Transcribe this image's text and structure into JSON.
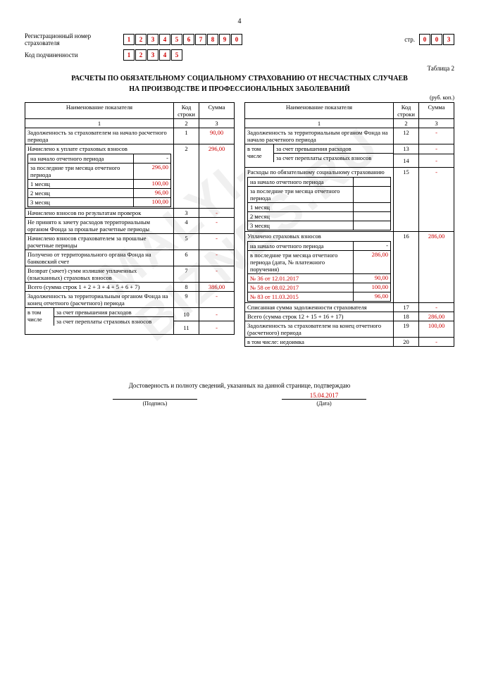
{
  "page_number": "4",
  "header": {
    "reg_label": "Регистрационный номер страхователя",
    "reg_digits": [
      "1",
      "2",
      "3",
      "4",
      "5",
      "6",
      "7",
      "8",
      "9",
      "0"
    ],
    "page_label": "стр.",
    "page_digits": [
      "0",
      "0",
      "3"
    ],
    "sub_label": "Код подчиненности",
    "sub_digits": [
      "1",
      "2",
      "3",
      "4",
      "5"
    ]
  },
  "table_no": "Таблица 2",
  "title1": "РАСЧЕТЫ ПО ОБЯЗАТЕЛЬНОМУ СОЦИАЛЬНОМУ СТРАХОВАНИЮ ОТ НЕСЧАСТНЫХ СЛУЧАЕВ",
  "title2": "НА ПРОИЗВОДСТВЕ И ПРОФЕССИОНАЛЬНЫХ ЗАБОЛЕВАНИЙ",
  "unit_label": "(руб. коп.)",
  "columns": {
    "name": "Наименование показателя",
    "code": "Код строки",
    "sum": "Сумма",
    "h1": "1",
    "h2": "2",
    "h3": "3"
  },
  "left": {
    "r1": {
      "n": "Задолженность за страхователем на начало расчетного периода",
      "c": "1",
      "s": "90,00"
    },
    "r2": {
      "n": "Начислено к уплате страховых взносов",
      "c": "2",
      "s": "296,00"
    },
    "r2a": {
      "n": "на начало отчетного периода",
      "s": "-"
    },
    "r2b": {
      "n": "за последние три месяца отчетного периода",
      "s": "296,00"
    },
    "m1": {
      "n": "1 месяц",
      "s": "100,00"
    },
    "m2": {
      "n": "2 месяц",
      "s": "96,00"
    },
    "m3": {
      "n": "3 месяц",
      "s": "100,00"
    },
    "r3": {
      "n": "Начислено взносов по результатам проверок",
      "c": "3",
      "s": "-"
    },
    "r4": {
      "n": "Не принято к зачету расходов территориальным органом Фонда за прошлые расчетные периоды",
      "c": "4",
      "s": "-"
    },
    "r5": {
      "n": "Начислено взносов страхователем за прошлые расчетные периоды",
      "c": "5",
      "s": "-"
    },
    "r6": {
      "n": "Получено от территориального органа Фонда на банковский счет",
      "c": "6",
      "s": "-"
    },
    "r7": {
      "n": "Возврат (зачет) сумм излишне уплаченных (взысканных) страховых взносов",
      "c": "7",
      "s": "-"
    },
    "r8": {
      "n": "Всего (сумма строк 1 + 2 + 3 + 4 + 5 + 6 + 7)",
      "c": "8",
      "s": "386,00"
    },
    "r9": {
      "n": "Задолженность за территориальным органом Фонда на конец отчетного (расчетного) периода",
      "c": "9",
      "s": "-"
    },
    "r10_lbl": "в том числе",
    "r10": {
      "n": "за счет превышения расходов",
      "c": "10",
      "s": "-"
    },
    "r11": {
      "n": "за счет переплаты страховых взносов",
      "c": "11",
      "s": "-"
    }
  },
  "right": {
    "r12": {
      "n": "Задолженность за территориальным органом Фонда на начало расчетного периода",
      "c": "12",
      "s": "-"
    },
    "r13_lbl": "в том числе",
    "r13": {
      "n": "за счет превышения расходов",
      "c": "13",
      "s": "-"
    },
    "r14": {
      "n": "за счет переплаты страховых взносов",
      "c": "14",
      "s": "-"
    },
    "r15": {
      "n": "Расходы по обязательному социальному страхованию",
      "c": "15",
      "s": "-"
    },
    "r15a": {
      "n": "на начало отчетного периода"
    },
    "r15b": {
      "n": "за последние три месяца отчетного периода"
    },
    "m1": {
      "n": "1 месяц"
    },
    "m2": {
      "n": "2 месяц"
    },
    "m3": {
      "n": "3 месяц"
    },
    "r16": {
      "n": "Уплачено страховых взносов",
      "c": "16",
      "s": "286,00"
    },
    "r16a": {
      "n": "на начало отчетного периода",
      "s": "-"
    },
    "r16b": {
      "n": "в последние три месяца отчетного периода (дата, № платежного поручения)",
      "s": "286,00"
    },
    "p1": {
      "n": "№ 36 от 12.01.2017",
      "s": "90,00"
    },
    "p2": {
      "n": "№ 58 от 08.02.2017",
      "s": "100,00"
    },
    "p3": {
      "n": "№ 83 от 11.03.2015",
      "s": "96,00"
    },
    "r17": {
      "n": "Списанная сумма задолженности страхователя",
      "c": "17",
      "s": "-"
    },
    "r18": {
      "n": "Всего (сумма строк 12 + 15 + 16 + 17)",
      "c": "18",
      "s": "286,00"
    },
    "r19": {
      "n": "Задолженность за страхователем на конец отчетного (расчетного) периода",
      "c": "19",
      "s": "100,00"
    },
    "r20": {
      "n": "в том числе: недоимка",
      "c": "20",
      "s": "-"
    }
  },
  "footer": {
    "text": "Достоверность и полноту сведений, указанных на данной странице, подтверждаю",
    "sig": "(Подпись)",
    "date_val": "15.04.2017",
    "date_lbl": "(Дата)"
  },
  "watermark": "MALYI-BIZNES.RU"
}
